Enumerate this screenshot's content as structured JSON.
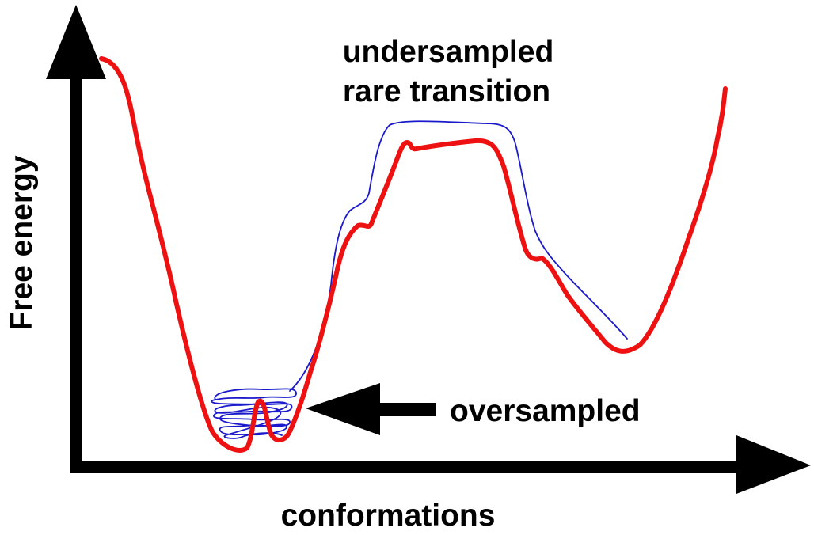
{
  "axes": {
    "y_label": "Free energy",
    "x_label": "conformations"
  },
  "annotations": {
    "rare_line1": "undersampled",
    "rare_line2": "rare transition",
    "oversampled": "oversampled"
  },
  "colors": {
    "landscape": "#ee1111",
    "trajectory": "#1a1acc",
    "axes": "#000000",
    "text": "#000000"
  }
}
